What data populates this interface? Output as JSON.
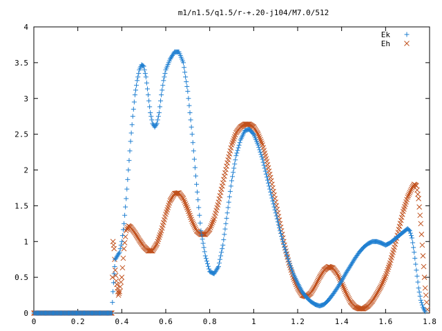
{
  "chart_data": {
    "type": "scatter",
    "title": "m1/n1.5/q1.5/r-+.20-j104/M7.0/512",
    "xlim": [
      0,
      1.8
    ],
    "ylim": [
      0,
      4
    ],
    "x_ticks": [
      "0",
      "0.2",
      "0.4",
      "0.6",
      "0.8",
      "1",
      "1.2",
      "1.4",
      "1.6",
      "1.8"
    ],
    "y_ticks": [
      "0",
      "0.5",
      "1",
      "1.5",
      "2",
      "2.5",
      "3",
      "3.5",
      "4"
    ],
    "grid": false,
    "legend_position": "top-right",
    "series": [
      {
        "name": "Ek",
        "marker": "plus",
        "color": "#1f7fd1",
        "points": [
          [
            0.0,
            0.0
          ],
          [
            0.1,
            0.0
          ],
          [
            0.2,
            0.0
          ],
          [
            0.3,
            0.0
          ],
          [
            0.355,
            0.0
          ],
          [
            0.36,
            0.3
          ],
          [
            0.365,
            0.55
          ],
          [
            0.37,
            0.75
          ],
          [
            0.38,
            0.8
          ],
          [
            0.39,
            0.85
          ],
          [
            0.4,
            1.0
          ],
          [
            0.41,
            1.25
          ],
          [
            0.42,
            1.6
          ],
          [
            0.43,
            2.0
          ],
          [
            0.44,
            2.4
          ],
          [
            0.45,
            2.75
          ],
          [
            0.46,
            3.05
          ],
          [
            0.47,
            3.25
          ],
          [
            0.48,
            3.4
          ],
          [
            0.49,
            3.47
          ],
          [
            0.5,
            3.45
          ],
          [
            0.51,
            3.3
          ],
          [
            0.52,
            3.05
          ],
          [
            0.53,
            2.8
          ],
          [
            0.54,
            2.65
          ],
          [
            0.55,
            2.6
          ],
          [
            0.56,
            2.65
          ],
          [
            0.57,
            2.8
          ],
          [
            0.58,
            3.05
          ],
          [
            0.59,
            3.25
          ],
          [
            0.6,
            3.4
          ],
          [
            0.62,
            3.55
          ],
          [
            0.64,
            3.65
          ],
          [
            0.66,
            3.65
          ],
          [
            0.68,
            3.5
          ],
          [
            0.7,
            3.1
          ],
          [
            0.72,
            2.5
          ],
          [
            0.74,
            1.8
          ],
          [
            0.76,
            1.15
          ],
          [
            0.78,
            0.8
          ],
          [
            0.8,
            0.58
          ],
          [
            0.82,
            0.55
          ],
          [
            0.84,
            0.65
          ],
          [
            0.86,
            0.95
          ],
          [
            0.88,
            1.4
          ],
          [
            0.9,
            1.85
          ],
          [
            0.92,
            2.2
          ],
          [
            0.94,
            2.42
          ],
          [
            0.96,
            2.55
          ],
          [
            0.98,
            2.57
          ],
          [
            1.0,
            2.5
          ],
          [
            1.02,
            2.35
          ],
          [
            1.04,
            2.15
          ],
          [
            1.06,
            1.9
          ],
          [
            1.08,
            1.65
          ],
          [
            1.1,
            1.4
          ],
          [
            1.12,
            1.15
          ],
          [
            1.14,
            0.92
          ],
          [
            1.16,
            0.72
          ],
          [
            1.18,
            0.55
          ],
          [
            1.2,
            0.42
          ],
          [
            1.22,
            0.3
          ],
          [
            1.24,
            0.22
          ],
          [
            1.26,
            0.16
          ],
          [
            1.28,
            0.12
          ],
          [
            1.3,
            0.1
          ],
          [
            1.32,
            0.12
          ],
          [
            1.34,
            0.18
          ],
          [
            1.36,
            0.26
          ],
          [
            1.38,
            0.35
          ],
          [
            1.4,
            0.45
          ],
          [
            1.42,
            0.56
          ],
          [
            1.44,
            0.66
          ],
          [
            1.46,
            0.76
          ],
          [
            1.48,
            0.85
          ],
          [
            1.5,
            0.92
          ],
          [
            1.52,
            0.97
          ],
          [
            1.54,
            1.0
          ],
          [
            1.56,
            1.0
          ],
          [
            1.58,
            0.98
          ],
          [
            1.6,
            0.95
          ],
          [
            1.62,
            0.98
          ],
          [
            1.64,
            1.03
          ],
          [
            1.66,
            1.08
          ],
          [
            1.68,
            1.13
          ],
          [
            1.7,
            1.18
          ],
          [
            1.71,
            1.15
          ],
          [
            1.72,
            1.05
          ],
          [
            1.73,
            0.85
          ],
          [
            1.74,
            0.6
          ],
          [
            1.75,
            0.35
          ],
          [
            1.76,
            0.18
          ],
          [
            1.77,
            0.08
          ],
          [
            1.78,
            0.02
          ]
        ]
      },
      {
        "name": "Eh",
        "marker": "cross",
        "color": "#c0501c",
        "points": [
          [
            0.0,
            0.0
          ],
          [
            0.1,
            0.0
          ],
          [
            0.2,
            0.0
          ],
          [
            0.3,
            0.0
          ],
          [
            0.355,
            0.0
          ],
          [
            0.36,
            1.0
          ],
          [
            0.365,
            0.9
          ],
          [
            0.37,
            0.6
          ],
          [
            0.375,
            0.45
          ],
          [
            0.38,
            0.35
          ],
          [
            0.385,
            0.25
          ],
          [
            0.39,
            0.3
          ],
          [
            0.4,
            0.5
          ],
          [
            0.41,
            0.9
          ],
          [
            0.42,
            1.15
          ],
          [
            0.43,
            1.22
          ],
          [
            0.44,
            1.2
          ],
          [
            0.46,
            1.12
          ],
          [
            0.48,
            1.02
          ],
          [
            0.5,
            0.93
          ],
          [
            0.52,
            0.87
          ],
          [
            0.54,
            0.87
          ],
          [
            0.56,
            0.97
          ],
          [
            0.58,
            1.15
          ],
          [
            0.6,
            1.38
          ],
          [
            0.62,
            1.57
          ],
          [
            0.64,
            1.67
          ],
          [
            0.66,
            1.68
          ],
          [
            0.68,
            1.6
          ],
          [
            0.7,
            1.45
          ],
          [
            0.72,
            1.28
          ],
          [
            0.74,
            1.15
          ],
          [
            0.76,
            1.1
          ],
          [
            0.78,
            1.1
          ],
          [
            0.8,
            1.17
          ],
          [
            0.82,
            1.32
          ],
          [
            0.84,
            1.55
          ],
          [
            0.86,
            1.82
          ],
          [
            0.88,
            2.1
          ],
          [
            0.9,
            2.35
          ],
          [
            0.92,
            2.52
          ],
          [
            0.94,
            2.6
          ],
          [
            0.96,
            2.64
          ],
          [
            0.98,
            2.64
          ],
          [
            1.0,
            2.6
          ],
          [
            1.02,
            2.5
          ],
          [
            1.04,
            2.35
          ],
          [
            1.06,
            2.12
          ],
          [
            1.08,
            1.85
          ],
          [
            1.1,
            1.55
          ],
          [
            1.12,
            1.25
          ],
          [
            1.14,
            0.95
          ],
          [
            1.16,
            0.7
          ],
          [
            1.18,
            0.5
          ],
          [
            1.2,
            0.35
          ],
          [
            1.22,
            0.25
          ],
          [
            1.24,
            0.23
          ],
          [
            1.26,
            0.28
          ],
          [
            1.28,
            0.38
          ],
          [
            1.3,
            0.5
          ],
          [
            1.32,
            0.6
          ],
          [
            1.34,
            0.65
          ],
          [
            1.36,
            0.63
          ],
          [
            1.38,
            0.55
          ],
          [
            1.4,
            0.42
          ],
          [
            1.42,
            0.28
          ],
          [
            1.44,
            0.16
          ],
          [
            1.46,
            0.09
          ],
          [
            1.48,
            0.06
          ],
          [
            1.5,
            0.06
          ],
          [
            1.52,
            0.1
          ],
          [
            1.54,
            0.17
          ],
          [
            1.56,
            0.27
          ],
          [
            1.58,
            0.38
          ],
          [
            1.6,
            0.52
          ],
          [
            1.62,
            0.7
          ],
          [
            1.64,
            0.92
          ],
          [
            1.66,
            1.17
          ],
          [
            1.68,
            1.42
          ],
          [
            1.7,
            1.62
          ],
          [
            1.72,
            1.75
          ],
          [
            1.73,
            1.8
          ],
          [
            1.74,
            1.78
          ],
          [
            1.75,
            1.6
          ],
          [
            1.76,
            1.25
          ],
          [
            1.77,
            0.8
          ],
          [
            1.78,
            0.35
          ],
          [
            1.79,
            0.05
          ]
        ]
      }
    ]
  }
}
